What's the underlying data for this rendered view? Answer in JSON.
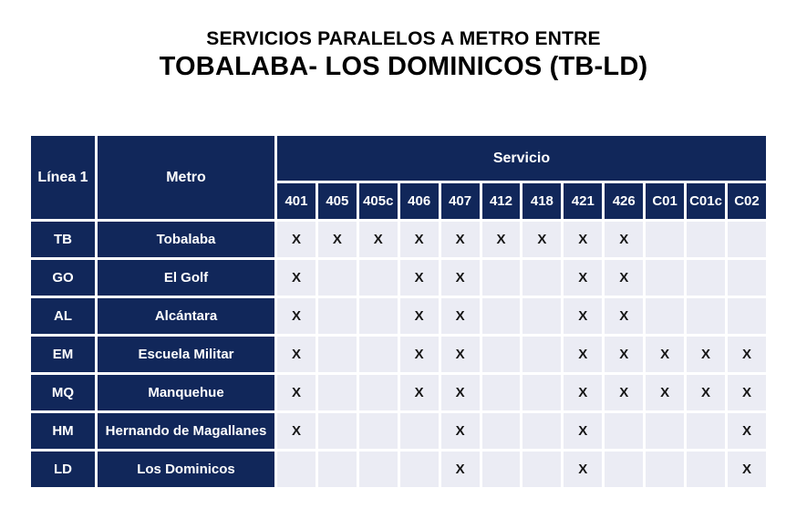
{
  "title": {
    "line1": "SERVICIOS PARALELOS A METRO ENTRE",
    "line2": "TOBALABA- LOS DOMINICOS (TB-LD)"
  },
  "table": {
    "col_linea_header": "Línea 1",
    "col_metro_header": "Metro",
    "servicio_header": "Servicio",
    "service_codes": [
      "401",
      "405",
      "405c",
      "406",
      "407",
      "412",
      "418",
      "421",
      "426",
      "C01",
      "C01c",
      "C02"
    ],
    "mark_symbol": "X",
    "rows": [
      {
        "code": "TB",
        "station": "Tobalaba",
        "marked_services": [
          "401",
          "405",
          "405c",
          "406",
          "407",
          "412",
          "418",
          "421",
          "426"
        ]
      },
      {
        "code": "GO",
        "station": "El Golf",
        "marked_services": [
          "401",
          "406",
          "407",
          "421",
          "426"
        ]
      },
      {
        "code": "AL",
        "station": "Alcántara",
        "marked_services": [
          "401",
          "406",
          "407",
          "421",
          "426"
        ]
      },
      {
        "code": "EM",
        "station": "Escuela Militar",
        "marked_services": [
          "401",
          "406",
          "407",
          "421",
          "426",
          "C01",
          "C01c",
          "C02"
        ]
      },
      {
        "code": "MQ",
        "station": "Manquehue",
        "marked_services": [
          "401",
          "406",
          "407",
          "421",
          "426",
          "C01",
          "C01c",
          "C02"
        ]
      },
      {
        "code": "HM",
        "station": "Hernando de Magallanes",
        "marked_services": [
          "401",
          "407",
          "421",
          "C02"
        ]
      },
      {
        "code": "LD",
        "station": "Los Dominicos",
        "marked_services": [
          "407",
          "421",
          "C02"
        ]
      }
    ],
    "colors": {
      "header_bg": "#11275A",
      "cell_bg": "#EBECF4",
      "grid": "#FFFFFF",
      "header_text": "#FFFFFF",
      "mark_color": "#161616",
      "title_color": "#000000"
    }
  }
}
